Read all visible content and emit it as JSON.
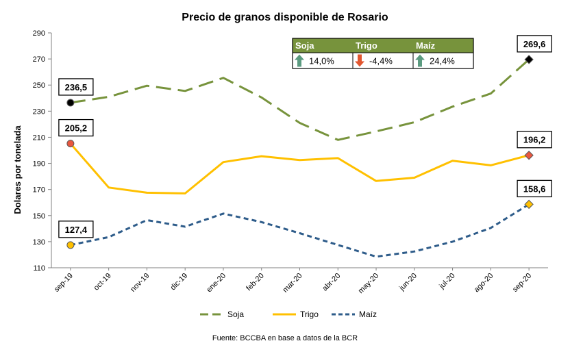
{
  "chart_data": {
    "type": "line",
    "title": "Precio de granos disponible de Rosario",
    "ylabel": "Dolares por tonelada",
    "xlabel": "",
    "source": "Fuente: BCCBA en base a datos de la BCR",
    "ylim": [
      110,
      290
    ],
    "yticks": [
      110,
      130,
      150,
      170,
      190,
      210,
      230,
      250,
      270,
      290
    ],
    "categories": [
      "sep-19",
      "oct-19",
      "nov-19",
      "dic-19",
      "ene-20",
      "feb-20",
      "mar-20",
      "abr-20",
      "may-20",
      "jun-20",
      "jul-20",
      "ago-20",
      "sep-20"
    ],
    "grid": false,
    "legend_position": "bottom",
    "series": [
      {
        "name": "Soja",
        "color": "#77933C",
        "dash": "long-dash",
        "values": [
          236.5,
          241,
          249.5,
          245.5,
          255.5,
          240.5,
          221,
          208,
          214.5,
          221.5,
          233.5,
          243.5,
          269.6
        ]
      },
      {
        "name": "Trigo",
        "color": "#FFC000",
        "dash": "solid",
        "values": [
          205.2,
          171.5,
          167.5,
          167,
          191,
          195.5,
          192.5,
          194,
          176.5,
          179,
          192,
          188.5,
          196.2
        ]
      },
      {
        "name": "Maíz",
        "color": "#2E5C8A",
        "dash": "short-dash",
        "values": [
          127.4,
          133.5,
          146.5,
          141.5,
          151.5,
          145,
          136.5,
          127.5,
          118.5,
          122.5,
          130,
          140.5,
          158.6
        ]
      }
    ],
    "data_labels": [
      {
        "series": "Soja",
        "index": 0,
        "text": "236,5",
        "marker": "circle",
        "fill": "#000000"
      },
      {
        "series": "Soja",
        "index": 12,
        "text": "269,6",
        "marker": "diamond",
        "fill": "#000000"
      },
      {
        "series": "Trigo",
        "index": 0,
        "text": "205,2",
        "marker": "circle",
        "fill": "#E9573F"
      },
      {
        "series": "Trigo",
        "index": 12,
        "text": "196,2",
        "marker": "diamond",
        "fill": "#E9573F"
      },
      {
        "series": "Maíz",
        "index": 0,
        "text": "127,4",
        "marker": "circle",
        "fill": "#FFC000"
      },
      {
        "series": "Maíz",
        "index": 12,
        "text": "158,6",
        "marker": "diamond",
        "fill": "#FFC000"
      }
    ],
    "variation_table": {
      "header_color": "#77933C",
      "columns": [
        {
          "name": "Soja",
          "value": "14,0%",
          "direction": "up",
          "icon": "arrow-up-icon",
          "arrow_color": "#5B9B80"
        },
        {
          "name": "Trigo",
          "value": "-4,4%",
          "direction": "down",
          "icon": "arrow-down-icon",
          "arrow_color": "#E2562F"
        },
        {
          "name": "Maíz",
          "value": "24,4%",
          "direction": "up",
          "icon": "arrow-up-icon",
          "arrow_color": "#5B9B80"
        }
      ]
    }
  }
}
